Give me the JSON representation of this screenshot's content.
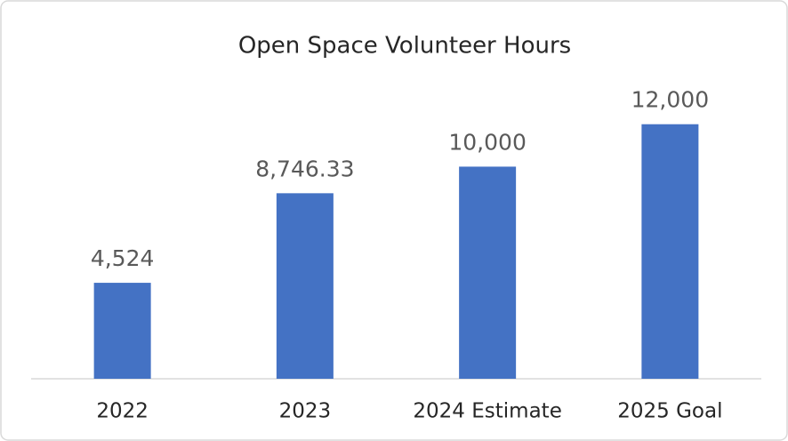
{
  "chart_data": {
    "type": "bar",
    "title": "Open Space Volunteer Hours",
    "categories": [
      "2022",
      "2023",
      "2024 Estimate",
      "2025 Goal"
    ],
    "values": [
      4524,
      8746.33,
      10000,
      12000
    ],
    "value_labels": [
      "4,524",
      "8,746.33",
      "10,000",
      "12,000"
    ],
    "color": "#4472c4",
    "ylim": [
      0,
      14000
    ]
  }
}
